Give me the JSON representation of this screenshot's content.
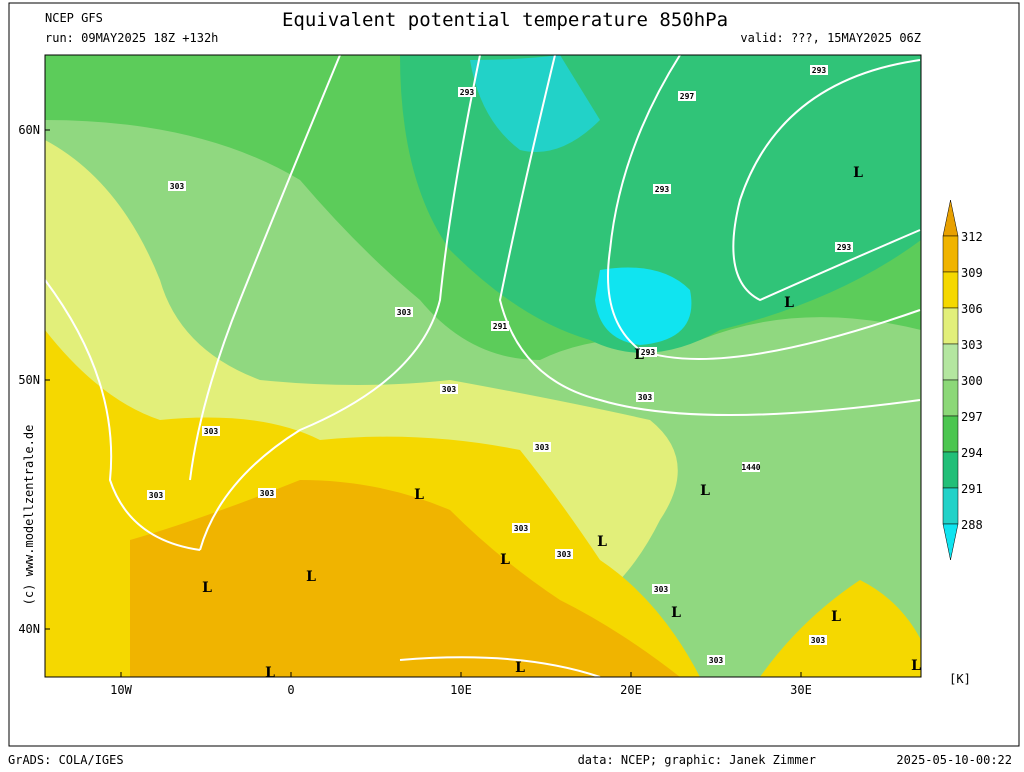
{
  "header": {
    "model": "NCEP GFS",
    "title": "Equivalent potential temperature 850hPa",
    "run": "run: 09MAY2025 18Z +132h",
    "valid": "valid: ???, 15MAY2025 06Z"
  },
  "axes": {
    "lat_labels": [
      "60N",
      "50N",
      "40N"
    ],
    "lon_labels": [
      "10W",
      "0",
      "10E",
      "20E",
      "30E"
    ]
  },
  "colorbar": {
    "ticks": [
      312,
      309,
      306,
      303,
      300,
      297,
      294,
      291,
      288
    ],
    "unit": "[K]",
    "colors": [
      "#e8a000",
      "#f0b400",
      "#f5d800",
      "#e2ef7a",
      "#b4e6a0",
      "#8cd878",
      "#4cc650",
      "#22bf78",
      "#22d2c8",
      "#10e4f0"
    ]
  },
  "contour_labels": [
    "293",
    "297",
    "293",
    "303",
    "293",
    "293",
    "303",
    "291",
    "293",
    "303",
    "303",
    "303",
    "303",
    "1440",
    "303",
    "303",
    "303",
    "303",
    "303",
    "303",
    "303"
  ],
  "pressure_labels": [
    "L",
    "L",
    "L",
    "L",
    "L",
    "L",
    "L",
    "L",
    "L",
    "L",
    "L",
    "L",
    "L",
    "L"
  ],
  "credit": "(c) www.modellzentrale.de",
  "footer": {
    "software": "GrADS: COLA/IGES",
    "source": "data: NCEP; graphic: Janek Zimmer",
    "timestamp": "2025-05-10-00:22"
  }
}
